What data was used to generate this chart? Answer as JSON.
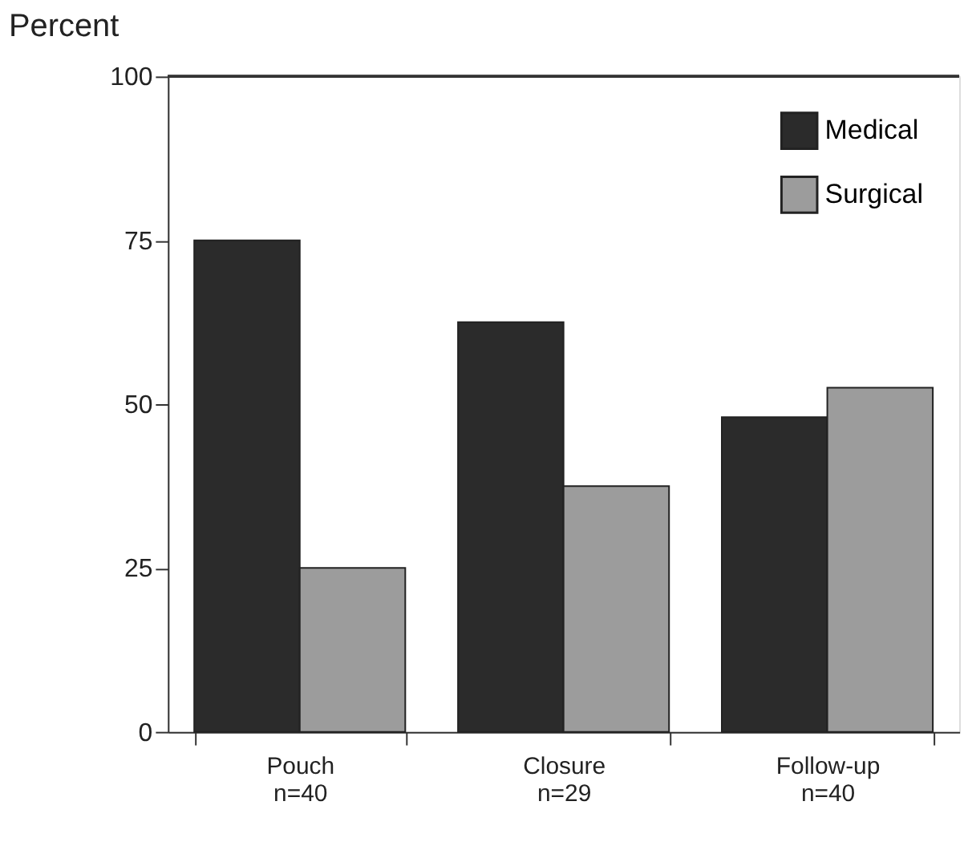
{
  "chart_data": {
    "type": "bar",
    "ylabel": "Percent",
    "categories": [
      "Pouch\nn=40",
      "Closure\nn=29",
      "Follow-up\nn=40"
    ],
    "series": [
      {
        "name": "Medical",
        "color": "#2b2b2b",
        "values": [
          75,
          62.5,
          48
        ]
      },
      {
        "name": "Surgical",
        "color": "#9c9c9c",
        "values": [
          25,
          37.5,
          52.5
        ]
      }
    ],
    "ylim": [
      0,
      100
    ],
    "yticks": [
      0,
      25,
      50,
      75,
      100
    ],
    "grid": false,
    "legend": "top right"
  }
}
